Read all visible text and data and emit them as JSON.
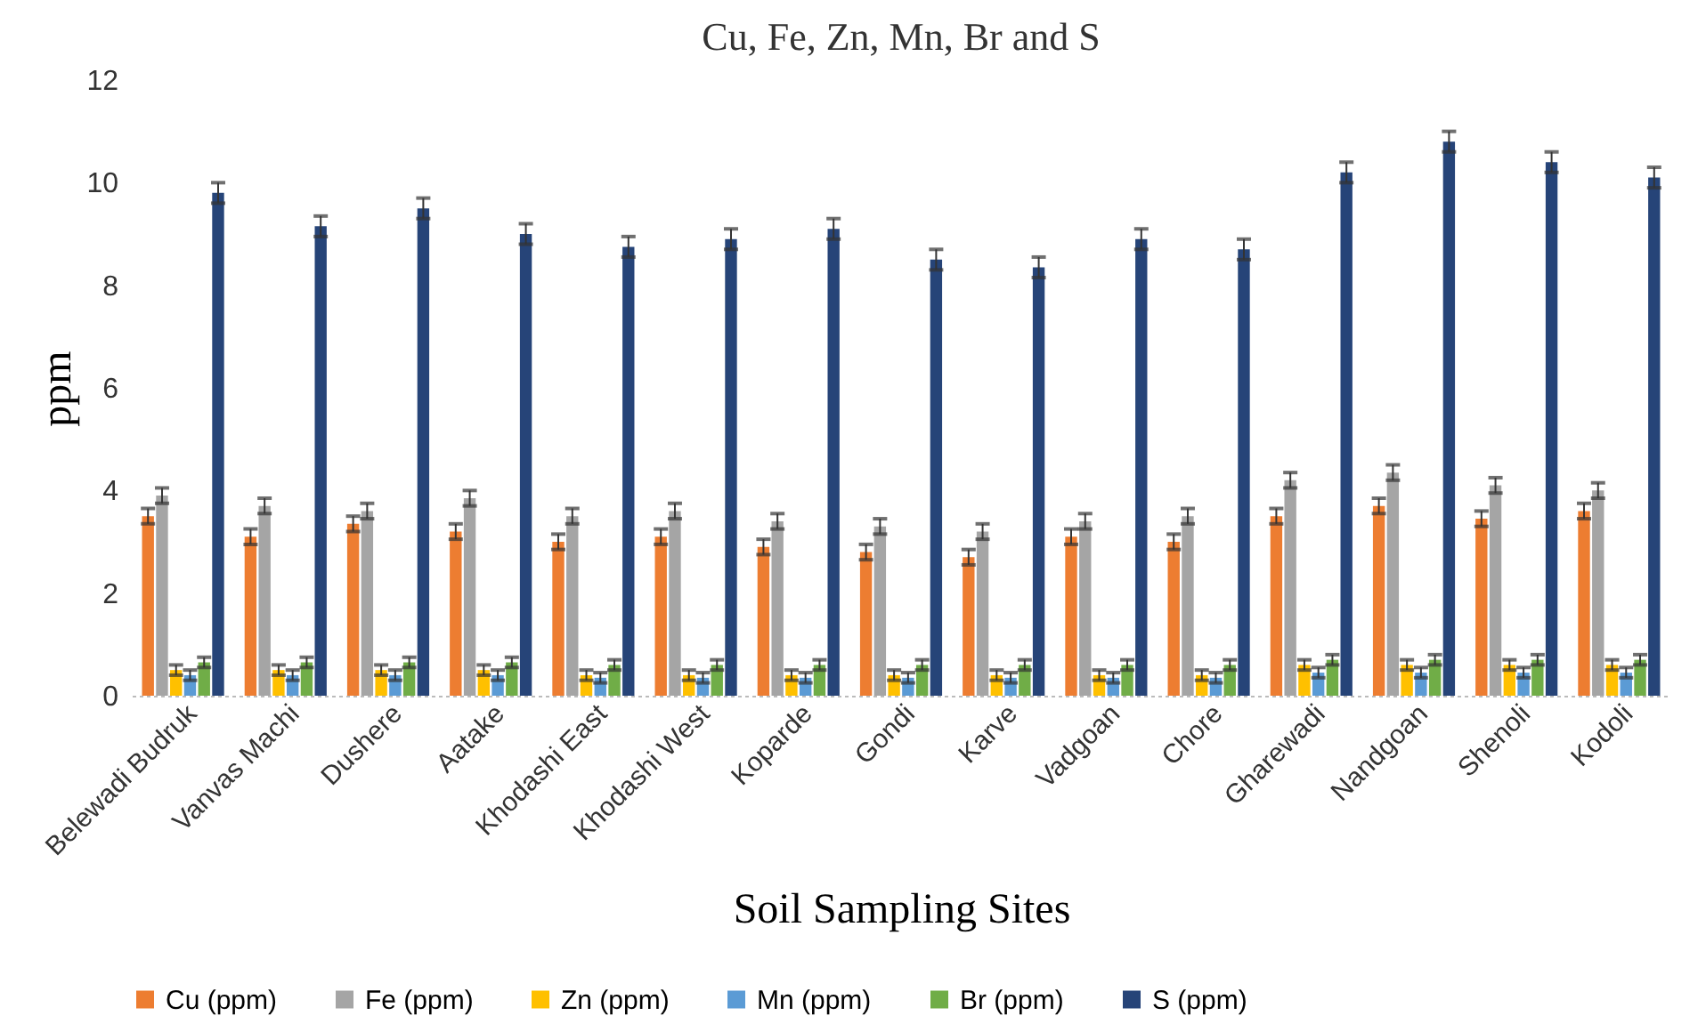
{
  "chart_data": {
    "type": "bar",
    "title": "Cu, Fe, Zn, Mn, Br and S",
    "xlabel": "Soil Sampling Sites",
    "ylabel": "ppm",
    "categories": [
      "Belewadi Budruk",
      "Vanvas Machi",
      "Dushere",
      "Aatake",
      "Khodashi East",
      "Khodashi West",
      "Koparde",
      "Gondi",
      "Karve",
      "Vadgoan",
      "Chore",
      "Gharewadi",
      "Nandgoan",
      "Shenoli",
      "Kodoli"
    ],
    "series": [
      {
        "name": "Cu (ppm)",
        "color": "#ed7d31",
        "values": [
          3.5,
          3.1,
          3.35,
          3.2,
          3.0,
          3.1,
          2.9,
          2.8,
          2.7,
          3.1,
          3.0,
          3.5,
          3.7,
          3.45,
          3.6
        ],
        "errors": [
          0.15,
          0.15,
          0.15,
          0.15,
          0.15,
          0.15,
          0.15,
          0.15,
          0.15,
          0.15,
          0.15,
          0.15,
          0.15,
          0.15,
          0.15
        ]
      },
      {
        "name": "Fe (ppm)",
        "color": "#a5a5a5",
        "values": [
          3.9,
          3.7,
          3.6,
          3.85,
          3.5,
          3.6,
          3.4,
          3.3,
          3.2,
          3.4,
          3.5,
          4.2,
          4.35,
          4.1,
          4.0
        ],
        "errors": [
          0.15,
          0.15,
          0.15,
          0.15,
          0.15,
          0.15,
          0.15,
          0.15,
          0.15,
          0.15,
          0.15,
          0.15,
          0.15,
          0.15,
          0.15
        ]
      },
      {
        "name": "Zn (ppm)",
        "color": "#ffc000",
        "values": [
          0.5,
          0.5,
          0.5,
          0.5,
          0.4,
          0.4,
          0.4,
          0.4,
          0.4,
          0.4,
          0.4,
          0.6,
          0.6,
          0.6,
          0.6
        ],
        "errors": [
          0.1,
          0.1,
          0.1,
          0.1,
          0.1,
          0.1,
          0.1,
          0.1,
          0.1,
          0.1,
          0.1,
          0.1,
          0.1,
          0.1,
          0.1
        ]
      },
      {
        "name": "Mn (ppm)",
        "color": "#5b9bd5",
        "values": [
          0.4,
          0.4,
          0.4,
          0.4,
          0.35,
          0.35,
          0.35,
          0.35,
          0.35,
          0.35,
          0.35,
          0.45,
          0.45,
          0.45,
          0.45
        ],
        "errors": [
          0.1,
          0.1,
          0.1,
          0.1,
          0.1,
          0.1,
          0.1,
          0.1,
          0.1,
          0.1,
          0.1,
          0.1,
          0.1,
          0.1,
          0.1
        ]
      },
      {
        "name": "Br (ppm)",
        "color": "#70ad47",
        "values": [
          0.65,
          0.65,
          0.65,
          0.65,
          0.6,
          0.6,
          0.6,
          0.6,
          0.6,
          0.6,
          0.6,
          0.7,
          0.7,
          0.7,
          0.7
        ],
        "errors": [
          0.1,
          0.1,
          0.1,
          0.1,
          0.1,
          0.1,
          0.1,
          0.1,
          0.1,
          0.1,
          0.1,
          0.1,
          0.1,
          0.1,
          0.1
        ]
      },
      {
        "name": "S (ppm)",
        "color": "#264478",
        "values": [
          9.8,
          9.15,
          9.5,
          9.0,
          8.75,
          8.9,
          9.1,
          8.5,
          8.35,
          8.9,
          8.7,
          10.2,
          10.8,
          10.4,
          10.1
        ],
        "errors": [
          0.2,
          0.2,
          0.2,
          0.2,
          0.2,
          0.2,
          0.2,
          0.2,
          0.2,
          0.2,
          0.2,
          0.2,
          0.2,
          0.2,
          0.2
        ]
      }
    ],
    "ylim": [
      0,
      12
    ],
    "yticks": [
      0,
      2,
      4,
      6,
      8,
      10,
      12
    ],
    "grid": false,
    "legend": "bottom"
  }
}
